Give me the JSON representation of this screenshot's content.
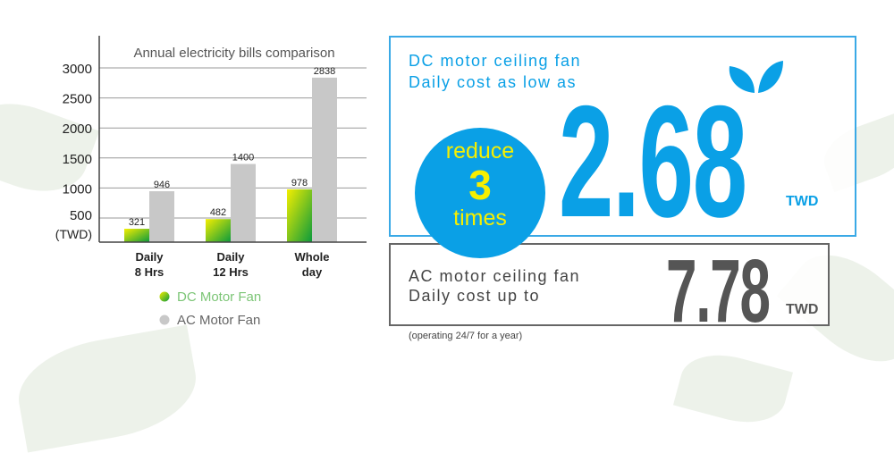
{
  "chart_data": {
    "type": "bar",
    "title": "Annual electricity bills comparison",
    "ylabel": "(TWD)",
    "categories": [
      [
        "Daily",
        "8 Hrs"
      ],
      [
        "Daily",
        "12 Hrs"
      ],
      [
        "Whole",
        "day"
      ]
    ],
    "yticks": [
      500,
      1000,
      1500,
      2000,
      2500,
      3000
    ],
    "ylim": [
      0,
      3000
    ],
    "grid": true,
    "legend_placement": "bottom",
    "series": [
      {
        "name": "DC Motor Fan",
        "values": [
          321,
          482,
          978
        ],
        "color": "#22a83a"
      },
      {
        "name": "AC Motor Fan",
        "values": [
          946,
          1400,
          2838
        ],
        "color": "#c8c8c8"
      }
    ]
  },
  "dc": {
    "line1": "DC motor ceiling fan",
    "line2": "Daily cost as low as",
    "value": "2.68",
    "unit": "TWD",
    "color": "#0aa0e6"
  },
  "badge": {
    "top": "reduce",
    "number": "3",
    "bottom": "times",
    "icon": "leaf-sprout-icon"
  },
  "ac": {
    "line1": "AC motor ceiling fan",
    "line2": "Daily cost up to",
    "value": "7.78",
    "unit": "TWD",
    "color": "#555555"
  },
  "note": "(operating 24/7 for a year)"
}
